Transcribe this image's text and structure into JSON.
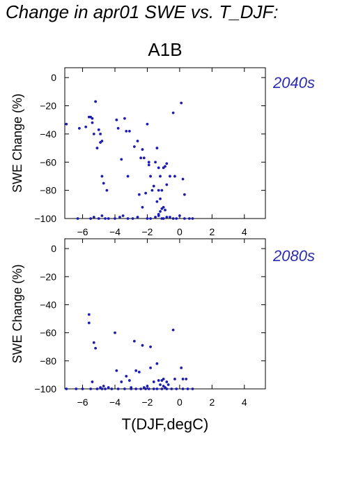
{
  "page": {
    "title": "Change in apr01 SWE vs. T_DJF:",
    "subtitle": "A1B"
  },
  "colors": {
    "points": "#1c1cb4",
    "period_label": "#2b2bb0",
    "frame": "#000000"
  },
  "chart_data": [
    {
      "type": "scatter",
      "title": "2040s",
      "xlabel": "",
      "ylabel": "SWE Change (%)",
      "xlim": [
        -7.1,
        5.3
      ],
      "ylim": [
        -100,
        7
      ],
      "xticks": [
        -6,
        -4,
        -2,
        0,
        2,
        4
      ],
      "yticks": [
        0,
        -20,
        -40,
        -60,
        -80,
        -100
      ],
      "x": [
        -7.0,
        -6.2,
        -5.8,
        -5.6,
        -5.5,
        -5.4,
        -5.4,
        -5.3,
        -5.2,
        -5.1,
        -5.0,
        -4.9,
        -4.8,
        -4.9,
        -4.8,
        -4.7,
        -4.5,
        -3.9,
        -3.8,
        -3.6,
        -3.4,
        -3.3,
        -3.2,
        -3.1,
        -2.8,
        -2.6,
        -2.5,
        -2.4,
        -2.3,
        -2.2,
        -2.1,
        -2.0,
        -1.9,
        -1.9,
        -1.8,
        -1.7,
        -1.6,
        -1.5,
        -1.4,
        -1.3,
        -1.3,
        -1.2,
        -1.2,
        -1.1,
        -1.0,
        -0.9,
        -0.8,
        -0.8,
        -0.6,
        -0.4,
        -0.3,
        0.1,
        0.2,
        0.3,
        -6.3,
        -5.5,
        -5.3,
        -5.0,
        -4.8,
        -4.6,
        -4.4,
        -4.0,
        -3.7,
        -3.5,
        -3.2,
        -2.9,
        -2.6,
        -2.3,
        -2.0,
        -1.8,
        -1.5,
        -1.3,
        -1.1,
        -1.0,
        -0.8,
        -0.6,
        -0.4,
        -0.2,
        0.0,
        0.3,
        0.6,
        0.8,
        -1.4,
        -1.2,
        -1.0,
        -0.9,
        -1.3,
        -1.1
      ],
      "y": [
        -33,
        -36,
        -35,
        -28,
        -28,
        -32,
        -29,
        -40,
        -17,
        -50,
        -37,
        -40,
        -45,
        -46,
        -70,
        -75,
        -80,
        -30,
        -36,
        -58,
        -29,
        -38,
        -70,
        -38,
        -49,
        -45,
        -83,
        -57,
        -51,
        -57,
        -82,
        -33,
        -60,
        -62,
        -70,
        -80,
        -77,
        -60,
        -50,
        -64,
        -80,
        -70,
        -95,
        -80,
        -64,
        -63,
        -61,
        -76,
        -70,
        -25,
        -70,
        -18,
        -72,
        -83,
        -100,
        -100,
        -99,
        -100,
        -98,
        -100,
        -100,
        -100,
        -99,
        -98,
        -100,
        -100,
        -99,
        -92,
        -100,
        -100,
        -99,
        -98,
        -100,
        -100,
        -99,
        -99,
        -100,
        -100,
        -98,
        -100,
        -100,
        -100,
        -88,
        -86,
        -92,
        -94,
        -97,
        -93
      ]
    },
    {
      "type": "scatter",
      "title": "2080s",
      "xlabel": "T(DJF,degC)",
      "ylabel": "SWE Change (%)",
      "xlim": [
        -7.1,
        5.3
      ],
      "ylim": [
        -100,
        7
      ],
      "xticks": [
        -6,
        -4,
        -2,
        0,
        2,
        4
      ],
      "yticks": [
        0,
        -20,
        -40,
        -60,
        -80,
        -100
      ],
      "x": [
        -5.6,
        -5.6,
        -5.3,
        -5.2,
        -5.4,
        -4.9,
        -4.7,
        -4.4,
        -4.0,
        -3.9,
        -3.6,
        -3.3,
        -3.1,
        -3.0,
        -2.8,
        -2.7,
        -2.5,
        -2.3,
        -2.0,
        -1.8,
        -1.8,
        -1.6,
        -1.4,
        -1.3,
        -1.2,
        -1.1,
        -1.0,
        -0.9,
        -0.8,
        -0.4,
        -0.3,
        0.1,
        0.2,
        0.4,
        -7.0,
        -6.4,
        -6.0,
        -5.5,
        -5.1,
        -4.8,
        -4.6,
        -4.2,
        -3.8,
        -3.4,
        -3.0,
        -2.7,
        -2.4,
        -2.1,
        -1.9,
        -1.6,
        -1.4,
        -1.1,
        -0.8,
        -0.5,
        -0.2,
        0.2,
        0.5,
        0.8,
        -1.0,
        -0.7,
        -2.2
      ],
      "y": [
        -47,
        -53,
        -67,
        -71,
        -95,
        -99,
        -98,
        -99,
        -60,
        -87,
        -95,
        -91,
        -94,
        -99,
        -66,
        -87,
        -88,
        -69,
        -98,
        -70,
        -85,
        -95,
        -82,
        -94,
        -97,
        -94,
        -93,
        -99,
        -95,
        -58,
        -93,
        -85,
        -93,
        -93,
        -100,
        -100,
        -100,
        -100,
        -100,
        -100,
        -100,
        -100,
        -100,
        -100,
        -100,
        -100,
        -100,
        -100,
        -100,
        -100,
        -100,
        -100,
        -100,
        -100,
        -100,
        -100,
        -100,
        -100,
        -98,
        -97,
        -99
      ]
    }
  ]
}
